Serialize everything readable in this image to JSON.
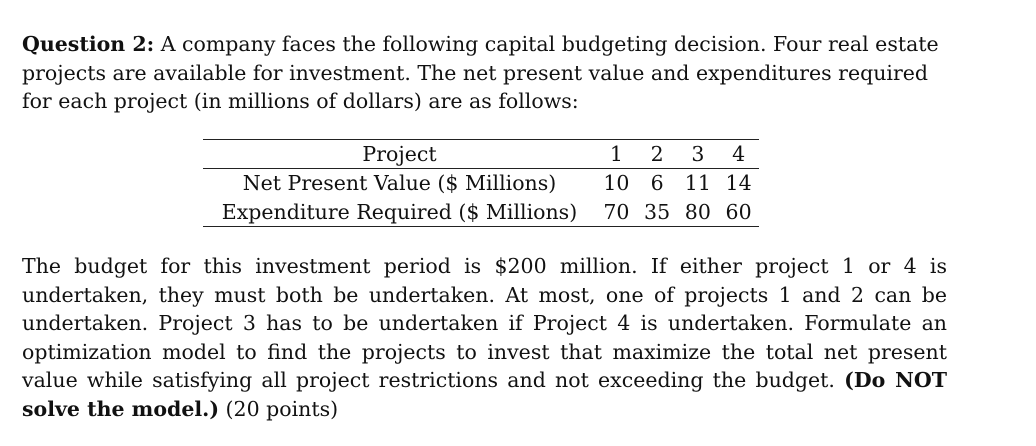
{
  "question": {
    "label": "Question 2:",
    "intro_text": "A company faces the following capital budgeting decision. Four real estate projects are available for investment. The net present value and expenditures required for each project (in millions of dollars) are as follows:"
  },
  "table": {
    "header_label": "Project",
    "project_numbers": [
      "1",
      "2",
      "3",
      "4"
    ],
    "rows": [
      {
        "label": "Net Present Value ($ Millions)",
        "values": [
          "10",
          "6",
          "11",
          "14"
        ]
      },
      {
        "label": "Expenditure Required ($ Millions)",
        "values": [
          "70",
          "35",
          "80",
          "60"
        ]
      }
    ]
  },
  "body": {
    "text": "The budget for this investment period is $200 million. If either project 1 or 4 is undertaken, they must both be undertaken. At most, one of projects 1 and 2 can be undertaken. Project 3 has to be undertaken if Project 4 is undertaken. Formulate an optimization model to find the projects to invest that maximize the total net present value while satisfying all project restrictions and not exceeding the budget.",
    "bold_note": "(Do NOT solve the model.)",
    "points": "(20 points)"
  }
}
